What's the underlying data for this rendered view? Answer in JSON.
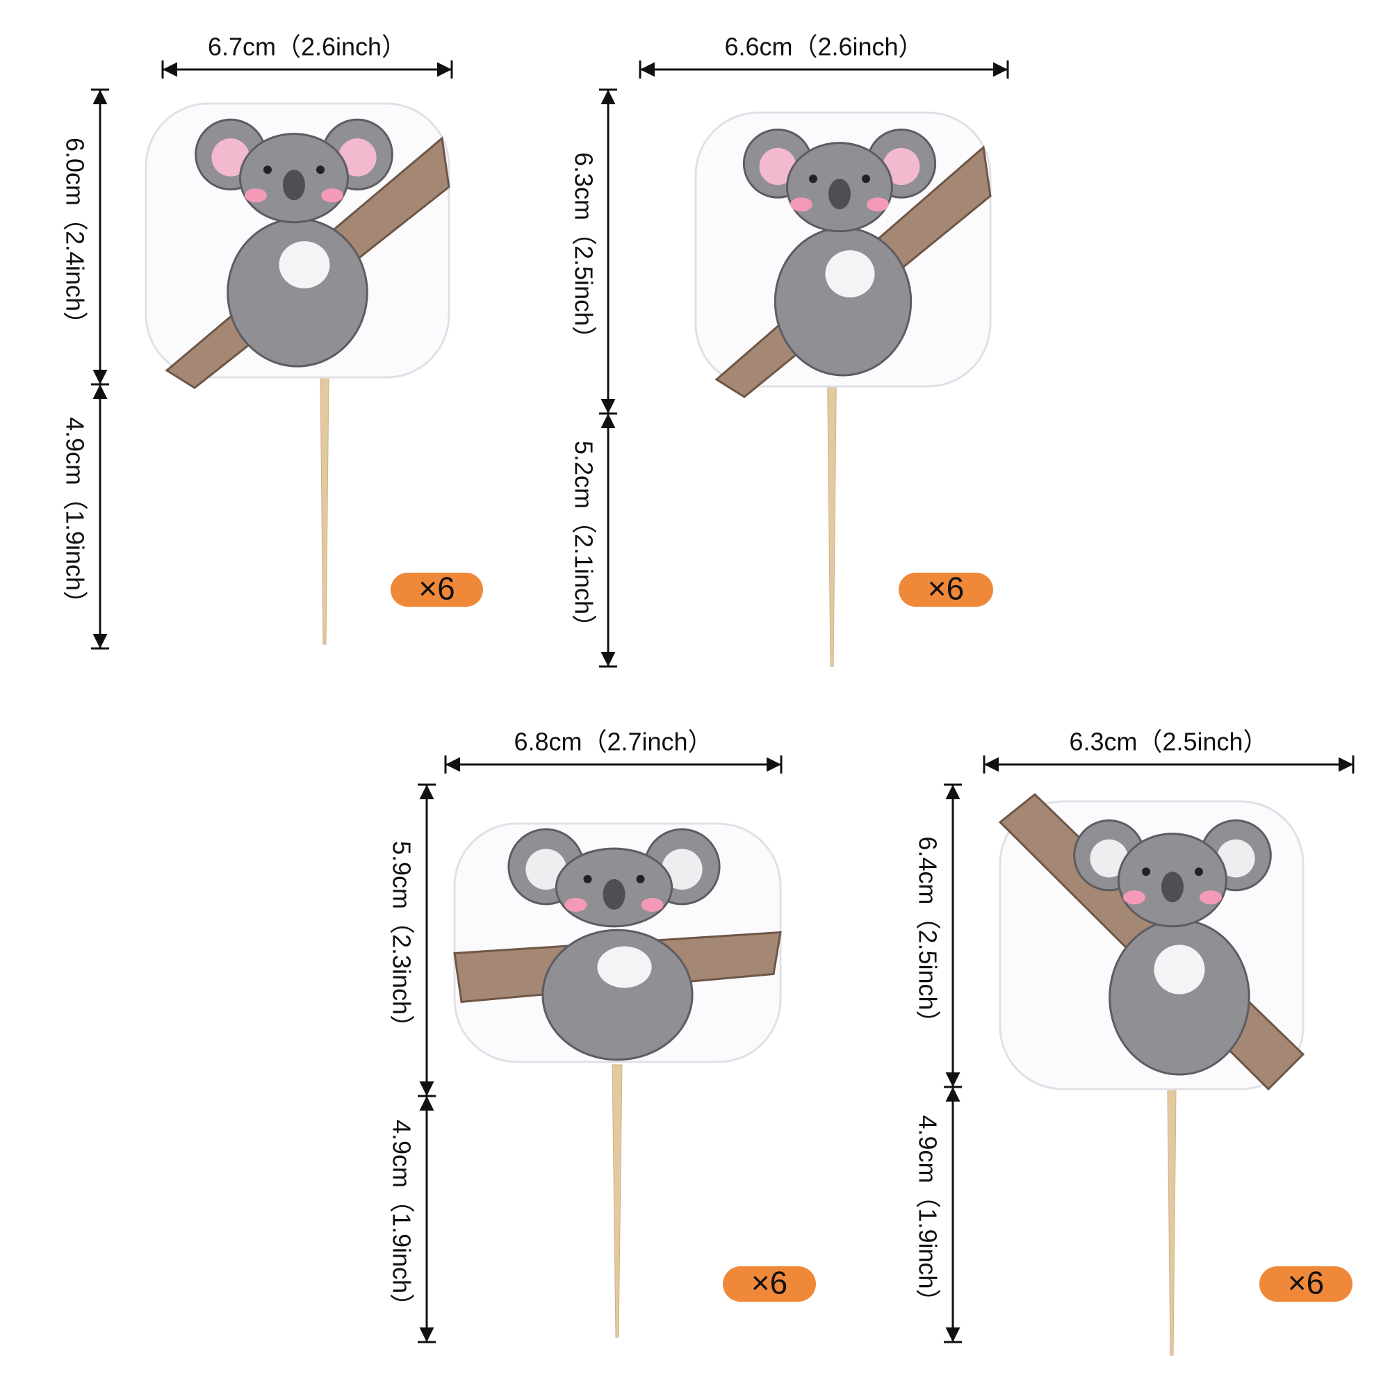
{
  "items": [
    {
      "width": "6.7cm（2.6inch）",
      "height_top": "6.0cm（2.4inch）",
      "height_bottom": "4.9cm（1.9inch）",
      "quantity": "×6"
    },
    {
      "width": "6.6cm（2.6inch）",
      "height_top": "6.3cm（2.5inch）",
      "height_bottom": "5.2cm（2.1inch）",
      "quantity": "×6"
    },
    {
      "width": "6.8cm（2.7inch）",
      "height_top": "5.9cm（2.3inch）",
      "height_bottom": "4.9cm（1.9inch）",
      "quantity": "×6"
    },
    {
      "width": "6.3cm（2.5inch）",
      "height_top": "6.4cm（2.5inch）",
      "height_bottom": "4.9cm（1.9inch）",
      "quantity": "×6"
    }
  ]
}
